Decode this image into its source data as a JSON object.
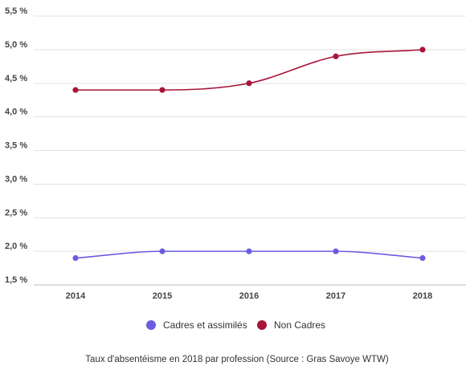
{
  "chart_data": {
    "type": "line",
    "categories": [
      "2014",
      "2015",
      "2016",
      "2017",
      "2018"
    ],
    "series": [
      {
        "name": "Cadres et assimilés",
        "color": "#6b5ce0",
        "values": [
          1.9,
          2.0,
          2.0,
          2.0,
          1.9
        ]
      },
      {
        "name": "Non Cadres",
        "color": "#a8153a",
        "values": [
          4.4,
          4.4,
          4.5,
          4.9,
          5.0
        ]
      }
    ],
    "yticks": [
      "1,5 %",
      "2,0 %",
      "2,5 %",
      "3,0 %",
      "3,5 %",
      "4,0 %",
      "4,5 %",
      "5,0 %",
      "5,5 %"
    ],
    "ylim": [
      1.5,
      5.5
    ],
    "grid": true,
    "legend_position": "bottom-center",
    "caption": "Taux d'absentéisme en 2018 par profession (Source : Gras Savoye WTW)"
  }
}
